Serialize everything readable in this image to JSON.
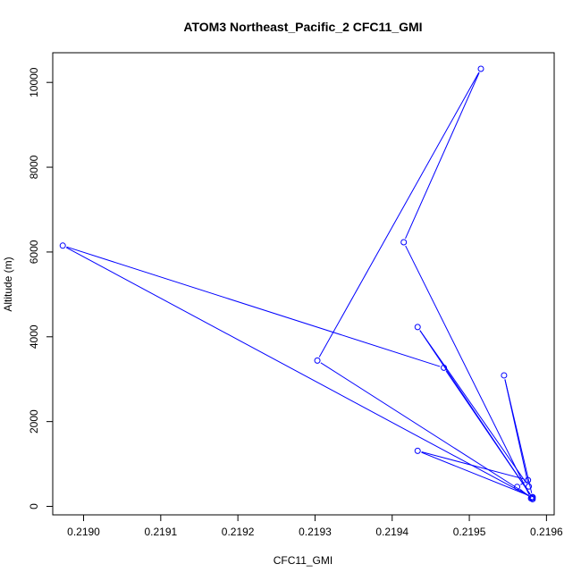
{
  "chart_data": {
    "type": "line",
    "title": "ATOM3 Northeast_Pacific_2 CFC11_GMI",
    "xlabel": "CFC11_GMI",
    "ylabel": "Altitude (m)",
    "xlim": [
      0.21896,
      0.21961
    ],
    "ylim": [
      -200,
      10700
    ],
    "xticks": [
      0.219,
      0.2191,
      0.2192,
      0.2193,
      0.2194,
      0.2195,
      0.2196
    ],
    "xtick_labels": [
      "0.2190",
      "0.2191",
      "0.2192",
      "0.2193",
      "0.2194",
      "0.2195",
      "0.2196"
    ],
    "yticks": [
      0,
      2000,
      4000,
      6000,
      8000,
      10000
    ],
    "ytick_labels": [
      "0",
      "2000",
      "4000",
      "6000",
      "8000",
      "10000"
    ],
    "grid": false,
    "color": "#0000ff",
    "series": [
      {
        "points": [
          {
            "x": 0.219582,
            "y": 170
          },
          {
            "x": 0.219562,
            "y": 460
          },
          {
            "x": 0.219576,
            "y": 620
          },
          {
            "x": 0.219433,
            "y": 1310
          },
          {
            "x": 0.219582,
            "y": 220
          },
          {
            "x": 0.219545,
            "y": 3090
          },
          {
            "x": 0.219577,
            "y": 470
          },
          {
            "x": 0.219433,
            "y": 4230
          },
          {
            "x": 0.219582,
            "y": 200
          },
          {
            "x": 0.219467,
            "y": 3270
          },
          {
            "x": 0.218973,
            "y": 6150
          },
          {
            "x": 0.219581,
            "y": 210
          },
          {
            "x": 0.219303,
            "y": 3440
          },
          {
            "x": 0.219515,
            "y": 10320
          },
          {
            "x": 0.219415,
            "y": 6230
          },
          {
            "x": 0.21958,
            "y": 190
          }
        ]
      }
    ]
  }
}
